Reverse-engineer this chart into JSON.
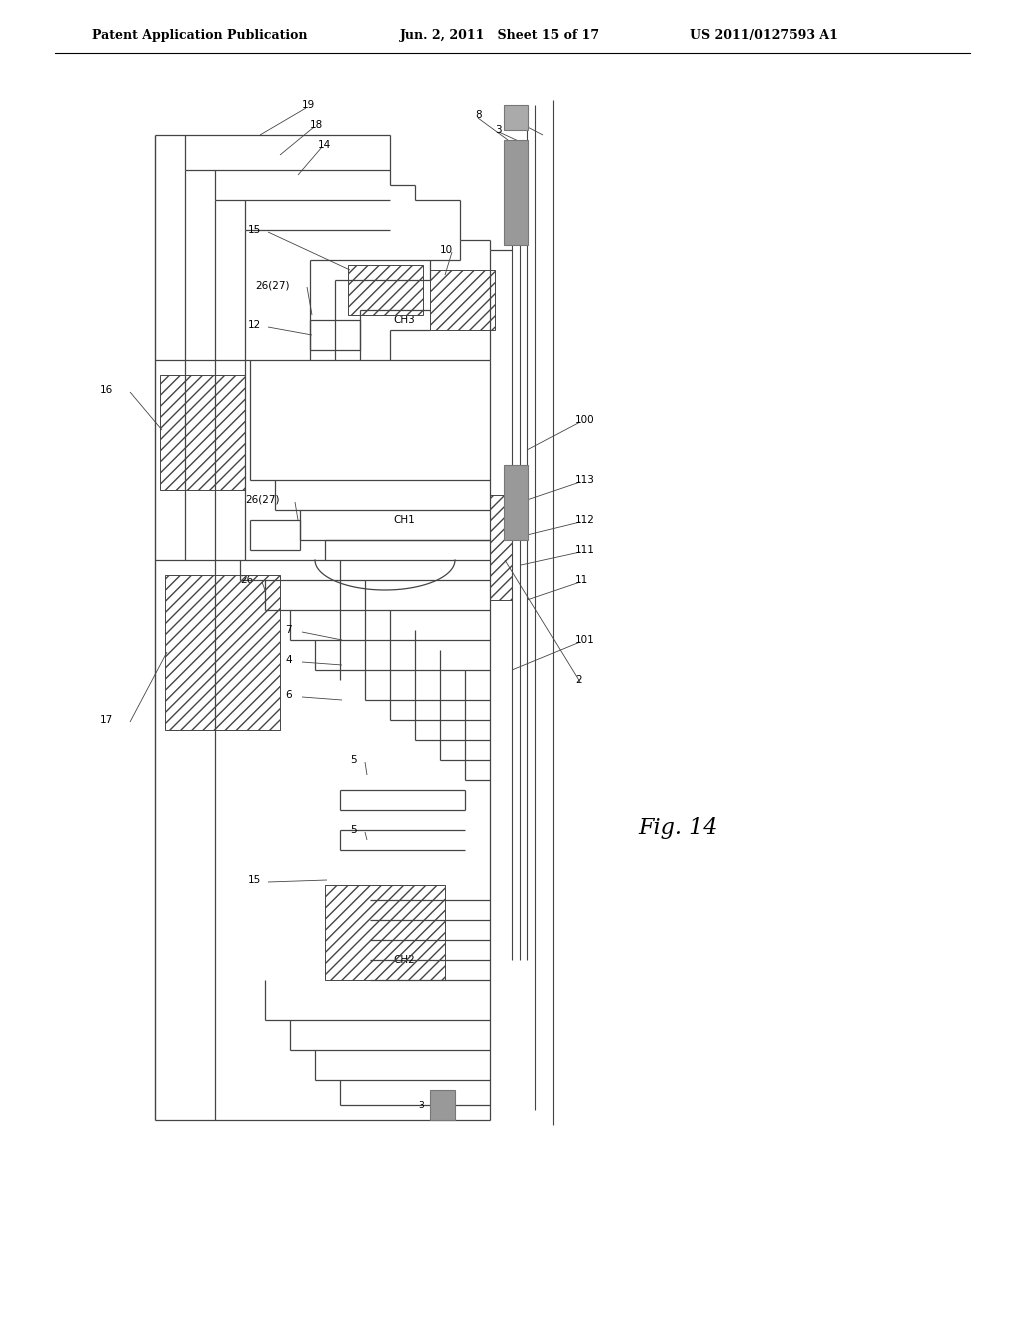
{
  "title_left": "Patent Application Publication",
  "title_mid": "Jun. 2, 2011   Sheet 15 of 17",
  "title_right": "US 2011/0127593 A1",
  "fig_label": "Fig. 14",
  "background": "#ffffff",
  "line_color": "#444444",
  "gray_fill": "#aaaaaa",
  "dark_gray": "#888888"
}
